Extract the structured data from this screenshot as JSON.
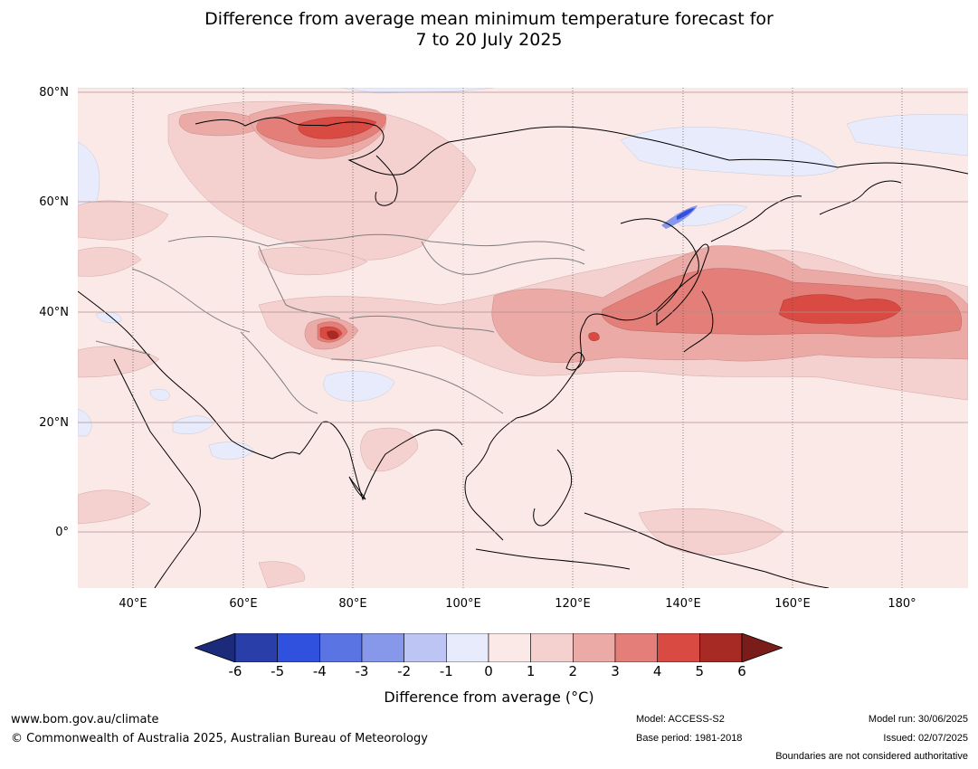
{
  "title": {
    "line1": "Difference from average mean minimum temperature forecast for",
    "line2": "7 to 20 July 2025"
  },
  "map": {
    "lat_labels": [
      "80°N",
      "60°N",
      "40°N",
      "20°N",
      "0°"
    ],
    "lon_labels": [
      "40°E",
      "60°E",
      "80°E",
      "100°E",
      "120°E",
      "140°E",
      "160°E",
      "180°"
    ],
    "extent": {
      "lon": [
        30,
        192
      ],
      "lat": [
        -10,
        80
      ]
    }
  },
  "colorbar": {
    "ticks": [
      "-6",
      "-5",
      "-4",
      "-3",
      "-2",
      "-1",
      "0",
      "1",
      "2",
      "3",
      "4",
      "5",
      "6"
    ],
    "colors": [
      "#1b2a7a",
      "#293ea9",
      "#3050de",
      "#5b74e3",
      "#8797ea",
      "#bcc5f3",
      "#e7ebfb",
      "#fbe9e8",
      "#f4d0cf",
      "#ebaaa6",
      "#e37e78",
      "#d94a42",
      "#a72a25",
      "#7a1d1a"
    ],
    "label": "Difference from average ($^\\circ$C)",
    "label_display": "Difference from average (°C)"
  },
  "footer": {
    "website": "www.bom.gov.au/climate",
    "copyright": "© Commonwealth of Australia 2025, Australian Bureau of Meteorology",
    "model": "Model: ACCESS-S2",
    "base_period": "Base period: 1981-2018",
    "model_run": "Model run: 30/06/2025",
    "issued": "Issued: 02/07/2025",
    "disclaimer": "Boundaries are not considered authoritative"
  }
}
